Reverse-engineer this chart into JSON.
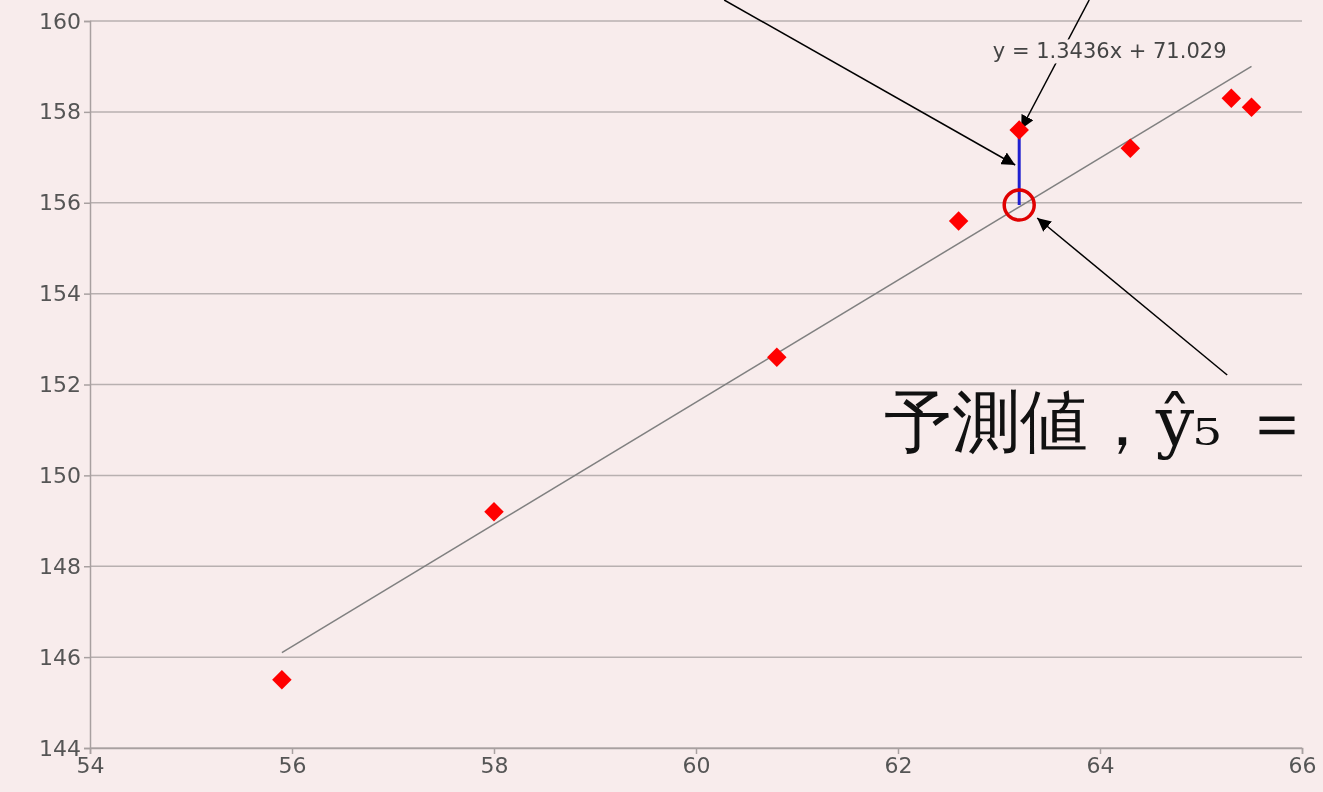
{
  "chart_data": {
    "type": "scatter",
    "xlim": [
      54,
      66
    ],
    "ylim": [
      144,
      160
    ],
    "xticks": [
      54,
      56,
      58,
      60,
      62,
      64,
      66
    ],
    "yticks": [
      144,
      146,
      148,
      150,
      152,
      154,
      156,
      158,
      160
    ],
    "grid": "y",
    "series": [
      {
        "marker": "diamond",
        "color": "#ff0000",
        "x": [
          55.9,
          58.0,
          60.8,
          62.6,
          63.2,
          64.3,
          65.3,
          65.5
        ],
        "values": [
          145.5,
          149.2,
          152.6,
          155.6,
          157.6,
          157.2,
          158.3,
          158.1
        ]
      },
      {
        "type": "line",
        "color": "#808080",
        "x": [
          55.9,
          65.5
        ],
        "values": [
          146.1,
          159.0
        ]
      }
    ],
    "annotations": [
      "y = 1.3436x + 71.029",
      {
        "text": "予測値，ŷ₅ ＝",
        "x": 63.2,
        "y": 155.95
      }
    ]
  }
}
